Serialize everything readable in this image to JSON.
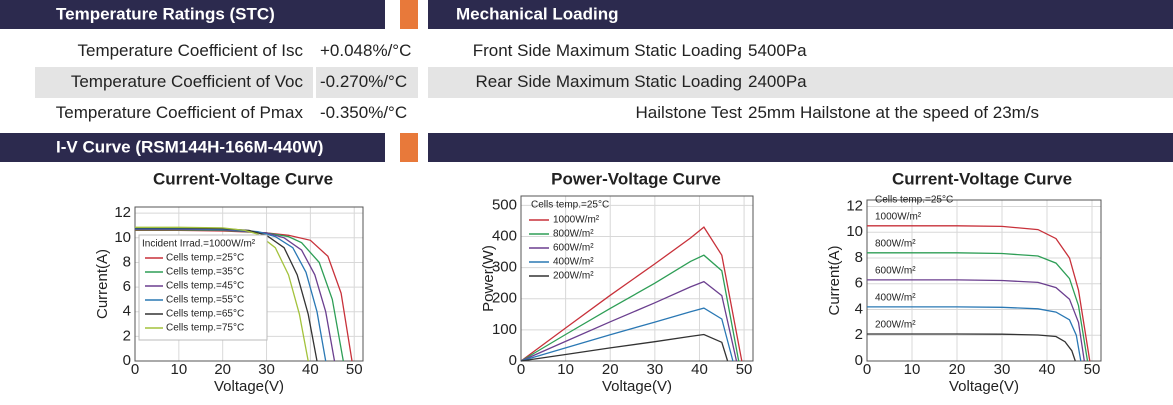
{
  "left_header": "Temperature Ratings (STC)",
  "right_header": "Mechanical Loading",
  "temperature_rows": [
    [
      "Temperature Coefficient of Isc",
      "+0.048%/°C"
    ],
    [
      "Temperature Coefficient of Voc",
      "-0.270%/°C"
    ],
    [
      "Temperature Coefficient of Pmax",
      "-0.350%/°C"
    ]
  ],
  "mechanical_rows": [
    [
      "Front Side Maximum Static Loading",
      "5400Pa"
    ],
    [
      "Rear Side Maximum Static Loading",
      "2400Pa"
    ],
    [
      "Hailstone Test",
      "25mm Hailstone at the speed of 23m/s"
    ]
  ],
  "iv_header": "I-V Curve (RSM144H-166M-440W)",
  "charts": [
    {
      "type": "line",
      "title": "Current-Voltage Curve",
      "xlabel": "Voltage(V)",
      "ylabel": "Current(A)",
      "xlim": [
        0,
        52
      ],
      "ylim": [
        0,
        12.5
      ],
      "xticks": [
        0,
        10,
        20,
        30,
        40,
        50
      ],
      "yticks": [
        0,
        2,
        4,
        6,
        8,
        10,
        12
      ],
      "grid": true,
      "legend": "box",
      "annotation": "Incident Irrad.=1000W/m²",
      "series": [
        {
          "name": "Cells temp.=25°C",
          "color": "#c8313a",
          "x": [
            0,
            10,
            20,
            30,
            35,
            40,
            44,
            47,
            49.5
          ],
          "values": [
            10.6,
            10.6,
            10.55,
            10.4,
            10.2,
            9.8,
            8.5,
            5.5,
            0
          ]
        },
        {
          "name": "Cells temp.=35°C",
          "color": "#2e9e56",
          "x": [
            0,
            10,
            20,
            30,
            35,
            38,
            42,
            45,
            47.5
          ],
          "values": [
            10.65,
            10.65,
            10.6,
            10.4,
            10.1,
            9.6,
            8.0,
            5.0,
            0
          ]
        },
        {
          "name": "Cells temp.=45°C",
          "color": "#6b3f8f",
          "x": [
            0,
            10,
            20,
            30,
            34,
            38,
            41,
            43.5,
            45.5
          ],
          "values": [
            10.7,
            10.7,
            10.65,
            10.4,
            10,
            9.0,
            7.0,
            4.0,
            0
          ]
        },
        {
          "name": "Cells temp.=55°C",
          "color": "#2a78b4",
          "x": [
            0,
            10,
            20,
            28,
            32,
            36,
            39,
            41.5,
            43.5
          ],
          "values": [
            10.75,
            10.75,
            10.7,
            10.5,
            10.1,
            9.2,
            7.2,
            4.0,
            0
          ]
        },
        {
          "name": "Cells temp.=65°C",
          "color": "#333333",
          "x": [
            0,
            10,
            20,
            26,
            30,
            34,
            37,
            39.5,
            41.5
          ],
          "values": [
            10.8,
            10.8,
            10.75,
            10.6,
            10.2,
            9.2,
            7.0,
            3.8,
            0
          ]
        },
        {
          "name": "Cells temp.=75°C",
          "color": "#a3c23c",
          "x": [
            0,
            10,
            20,
            25,
            28,
            32,
            35,
            37.5,
            39.5
          ],
          "values": [
            10.85,
            10.85,
            10.8,
            10.6,
            10.3,
            9.2,
            7.0,
            3.8,
            0
          ]
        }
      ]
    },
    {
      "type": "line",
      "title": "Power-Voltage Curve",
      "xlabel": "Voltage(V)",
      "ylabel": "Power(W)",
      "xlim": [
        0,
        52
      ],
      "ylim": [
        0,
        530
      ],
      "xticks": [
        0,
        10,
        20,
        30,
        40,
        50
      ],
      "yticks": [
        0,
        100,
        200,
        300,
        400,
        500
      ],
      "grid": true,
      "legend": "list",
      "annotation": "Cells temp.=25°C",
      "series": [
        {
          "name": "1000W/m²",
          "color": "#c8313a",
          "x": [
            0,
            10,
            20,
            30,
            38,
            41,
            45,
            49.5
          ],
          "values": [
            0,
            106,
            211,
            312,
            395,
            430,
            340,
            0
          ]
        },
        {
          "name": "800W/m²",
          "color": "#2e9e56",
          "x": [
            0,
            10,
            20,
            30,
            38,
            41,
            45,
            48.8
          ],
          "values": [
            0,
            85,
            169,
            250,
            320,
            340,
            290,
            0
          ]
        },
        {
          "name": "600W/m²",
          "color": "#6b3f8f",
          "x": [
            0,
            10,
            20,
            30,
            38,
            41,
            45,
            48.3
          ],
          "values": [
            0,
            63,
            126,
            187,
            238,
            255,
            210,
            0
          ]
        },
        {
          "name": "400W/m²",
          "color": "#2a78b4",
          "x": [
            0,
            10,
            20,
            30,
            38,
            41,
            45,
            47.5
          ],
          "values": [
            0,
            42,
            84,
            125,
            158,
            170,
            135,
            0
          ]
        },
        {
          "name": "200W/m²",
          "color": "#333333",
          "x": [
            0,
            10,
            20,
            30,
            38,
            41,
            45,
            46.3
          ],
          "values": [
            0,
            21,
            42,
            62,
            79,
            85,
            60,
            0
          ]
        }
      ]
    },
    {
      "type": "line",
      "title": "Current-Voltage Curve",
      "xlabel": "Voltage(V)",
      "ylabel": "Current(A)",
      "xlim": [
        0,
        52
      ],
      "ylim": [
        0,
        12.5
      ],
      "xticks": [
        0,
        10,
        20,
        30,
        40,
        50
      ],
      "yticks": [
        0,
        2,
        4,
        6,
        8,
        10,
        12
      ],
      "grid": true,
      "legend": "inline",
      "annotation": "Cells temp.=25°C",
      "series": [
        {
          "name": "1000W/m²",
          "color": "#c8313a",
          "x": [
            0,
            20,
            30,
            38,
            42,
            45,
            47,
            49.5
          ],
          "values": [
            10.5,
            10.5,
            10.45,
            10.2,
            9.5,
            8.0,
            5.5,
            0
          ]
        },
        {
          "name": "800W/m²",
          "color": "#2e9e56",
          "x": [
            0,
            20,
            30,
            38,
            42,
            45,
            47,
            49
          ],
          "values": [
            8.4,
            8.4,
            8.35,
            8.15,
            7.6,
            6.4,
            4.3,
            0
          ]
        },
        {
          "name": "600W/m²",
          "color": "#6b3f8f",
          "x": [
            0,
            20,
            30,
            38,
            42,
            45,
            47,
            48.3
          ],
          "values": [
            6.3,
            6.3,
            6.25,
            6.1,
            5.7,
            4.8,
            3.0,
            0
          ]
        },
        {
          "name": "400W/m²",
          "color": "#2a78b4",
          "x": [
            0,
            20,
            30,
            38,
            42,
            45,
            46.5,
            47.5
          ],
          "values": [
            4.2,
            4.2,
            4.17,
            4.05,
            3.8,
            3.2,
            2.0,
            0
          ]
        },
        {
          "name": "200W/m²",
          "color": "#333333",
          "x": [
            0,
            20,
            30,
            38,
            42,
            44,
            45.5,
            46.3
          ],
          "values": [
            2.1,
            2.1,
            2.08,
            2.02,
            1.9,
            1.5,
            0.8,
            0
          ]
        }
      ]
    }
  ]
}
